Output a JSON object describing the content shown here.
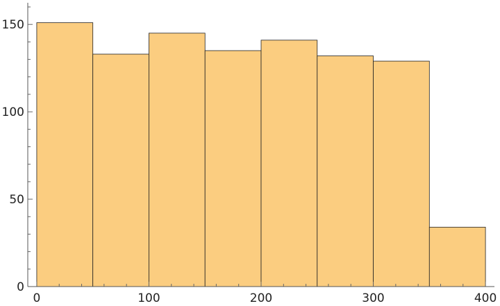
{
  "chart_data": {
    "type": "histogram",
    "title": "",
    "xlabel": "",
    "ylabel": "",
    "bin_width": 50,
    "bins": [
      {
        "start": 0,
        "end": 50,
        "count": 151
      },
      {
        "start": 50,
        "end": 100,
        "count": 133
      },
      {
        "start": 100,
        "end": 150,
        "count": 145
      },
      {
        "start": 150,
        "end": 200,
        "count": 135
      },
      {
        "start": 200,
        "end": 250,
        "count": 141
      },
      {
        "start": 250,
        "end": 300,
        "count": 132
      },
      {
        "start": 300,
        "end": 350,
        "count": 129
      },
      {
        "start": 350,
        "end": 400,
        "count": 34
      }
    ],
    "xlim": [
      -8,
      408
    ],
    "ylim": [
      0,
      160
    ],
    "xticks": [
      0,
      100,
      200,
      300,
      400
    ],
    "xtick_labels": [
      "0",
      "100",
      "200",
      "300",
      "400"
    ],
    "yticks": [
      0,
      50,
      100,
      150
    ],
    "ytick_labels": [
      "0",
      "50",
      "100",
      "150"
    ],
    "x_minor_step": 20,
    "y_minor_step": 10,
    "bar_color": "#fbcd80",
    "bar_edge_color": "#222222",
    "grid": false,
    "legend": "none"
  }
}
